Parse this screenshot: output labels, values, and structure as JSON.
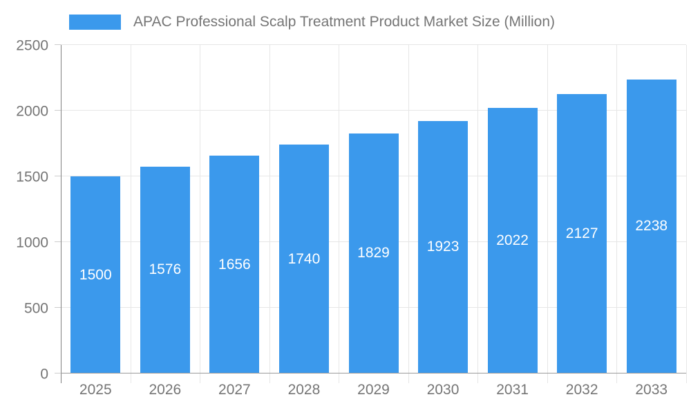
{
  "chart_data": {
    "type": "bar",
    "title": "APAC Professional Scalp Treatment Product Market Size (Million)",
    "categories": [
      "2025",
      "2026",
      "2027",
      "2028",
      "2029",
      "2030",
      "2031",
      "2032",
      "2033"
    ],
    "values": [
      1500,
      1576,
      1656,
      1740,
      1829,
      1923,
      2022,
      2127,
      2238
    ],
    "xlabel": "",
    "ylabel": "",
    "ylim": [
      0,
      2500
    ],
    "yticks": [
      0,
      500,
      1000,
      1500,
      2000,
      2500
    ],
    "grid": true,
    "legend_position": "top",
    "bar_color": "#3b99ec",
    "value_label_color": "#ffffff"
  },
  "legend": {
    "label": "APAC Professional Scalp Treatment Product Market Size (Million)",
    "swatch_color": "#3b99ec"
  },
  "colors": {
    "bar": "#3b99ec",
    "axis_text": "#757575",
    "gridline": "#e6e6e6",
    "axis_line": "#818181",
    "background": "#ffffff"
  }
}
